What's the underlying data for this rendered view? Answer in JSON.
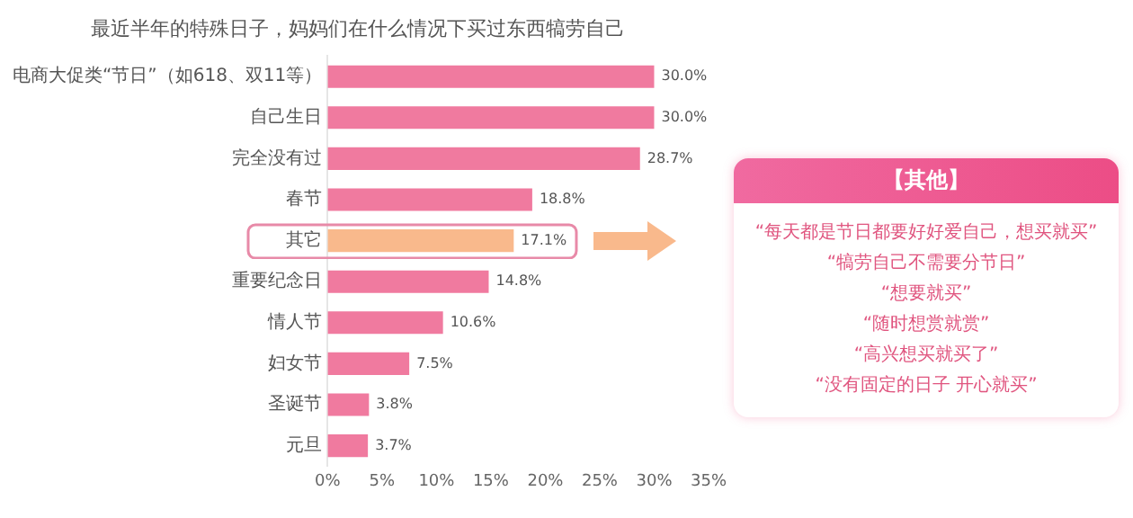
{
  "chart_data": [
    {
      "type": "bar",
      "orientation": "horizontal",
      "title": "最近半年的特殊日子，妈妈们在什么情况下买过东西犒劳自己",
      "categories": [
        "电商大促类“节日”（如618、双11等）",
        "自己生日",
        "完全没有过",
        "春节",
        "其它",
        "重要纪念日",
        "情人节",
        "妇女节",
        "圣诞节",
        "元旦"
      ],
      "values": [
        30.0,
        30.0,
        28.7,
        18.8,
        17.1,
        14.8,
        10.6,
        7.5,
        3.8,
        3.7
      ],
      "colors": [
        "#f07a9f",
        "#f07a9f",
        "#f07a9f",
        "#f07a9f",
        "#f9b98c",
        "#f07a9f",
        "#f07a9f",
        "#f07a9f",
        "#f07a9f",
        "#f07a9f"
      ],
      "value_labels": [
        "30.0%",
        "30.0%",
        "28.7%",
        "18.8%",
        "17.1%",
        "14.8%",
        "10.6%",
        "7.5%",
        "3.8%",
        "3.7%"
      ],
      "xlim": [
        0,
        35
      ],
      "xticks": [
        {
          "value": 0,
          "label": "0%"
        },
        {
          "value": 5,
          "label": "5%"
        },
        {
          "value": 10,
          "label": "10%"
        },
        {
          "value": 15,
          "label": "15%"
        },
        {
          "value": 20,
          "label": "20%"
        },
        {
          "value": 25,
          "label": "25%"
        },
        {
          "value": 30,
          "label": "30%"
        },
        {
          "value": 35,
          "label": "35%"
        }
      ],
      "grid": false
    },
    {
      "type": "other",
      "title": "【其他】",
      "annotations": [
        "“每天都是节日都要好好爱自己，想买就买”",
        "“犒劳自己不需要分节日”",
        "“想要就买”",
        "“随时想赏就赏”",
        "“高兴想买就买了”",
        "“没有固定的日子 开心就买”"
      ]
    }
  ]
}
